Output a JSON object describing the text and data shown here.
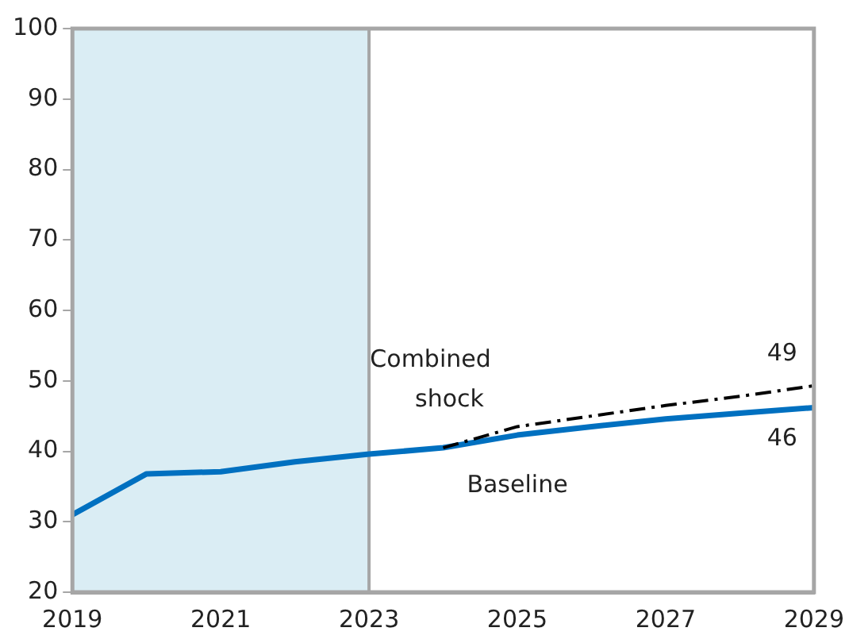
{
  "chart_data": {
    "type": "line",
    "x": [
      2019,
      2020,
      2021,
      2022,
      2023,
      2024,
      2025,
      2026,
      2027,
      2028,
      2029
    ],
    "series": [
      {
        "name": "Baseline",
        "color": "#0070c0",
        "values": [
          31,
          36.8,
          37.1,
          38.5,
          39.6,
          40.5,
          42.3,
          43.5,
          44.6,
          45.4,
          46.2
        ]
      },
      {
        "name": "Combined shock",
        "color": "#000000",
        "line_style": "dashdot",
        "x": [
          2024,
          2025,
          2026,
          2027,
          2028,
          2029
        ],
        "values": [
          40.5,
          43.5,
          45,
          46.5,
          47.8,
          49.3
        ]
      }
    ],
    "xlim": [
      2019,
      2029
    ],
    "xticks": [
      2019,
      2021,
      2023,
      2025,
      2027,
      2029
    ],
    "ylim": [
      20,
      100
    ],
    "yticks": [
      20,
      30,
      40,
      50,
      60,
      70,
      80,
      90,
      100
    ],
    "bands": [
      {
        "axis": "x",
        "from": 2019,
        "to": 2023,
        "color": "#daedf4"
      }
    ],
    "ref_lines": [
      {
        "axis": "x",
        "value": 2023,
        "color": "#a6a6a6"
      }
    ],
    "annotations": [
      {
        "text": "49",
        "x": 2029,
        "y": 49.3
      },
      {
        "text": "46",
        "x": 2029,
        "y": 46.2
      }
    ],
    "grid": false,
    "legend": false,
    "marker": "none"
  }
}
